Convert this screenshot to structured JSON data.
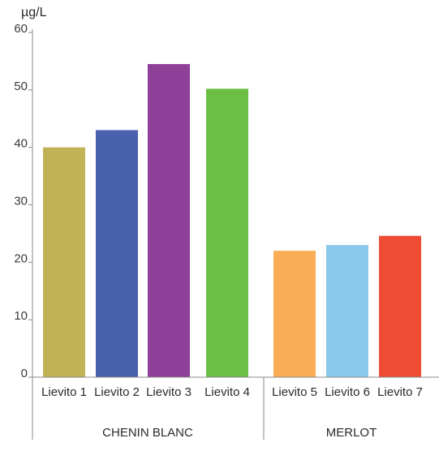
{
  "chart_data": {
    "type": "bar",
    "title": "",
    "xlabel": "",
    "ylabel": "µg/L",
    "ylim": [
      0,
      60
    ],
    "yticks": [
      0,
      10,
      20,
      30,
      40,
      50,
      60
    ],
    "grid": false,
    "legend": "none",
    "categories": [
      "Lievito 1",
      "Lievito 2",
      "Lievito 3",
      "Lievito 4",
      "Lievito 5",
      "Lievito 6",
      "Lievito 7"
    ],
    "values": [
      40,
      43,
      54.5,
      50.2,
      22,
      23,
      24.6
    ],
    "colors": [
      "#c2b257",
      "#4a61ad",
      "#8e3f98",
      "#6cbe45",
      "#f9ad55",
      "#8cc8ec",
      "#ee4c33"
    ],
    "groups": [
      {
        "label": "CHENIN BLANC",
        "categories": [
          "Lievito 1",
          "Lievito 2",
          "Lievito 3",
          "Lievito 4"
        ]
      },
      {
        "label": "MERLOT",
        "categories": [
          "Lievito 5",
          "Lievito 6",
          "Lievito 7"
        ]
      }
    ]
  }
}
